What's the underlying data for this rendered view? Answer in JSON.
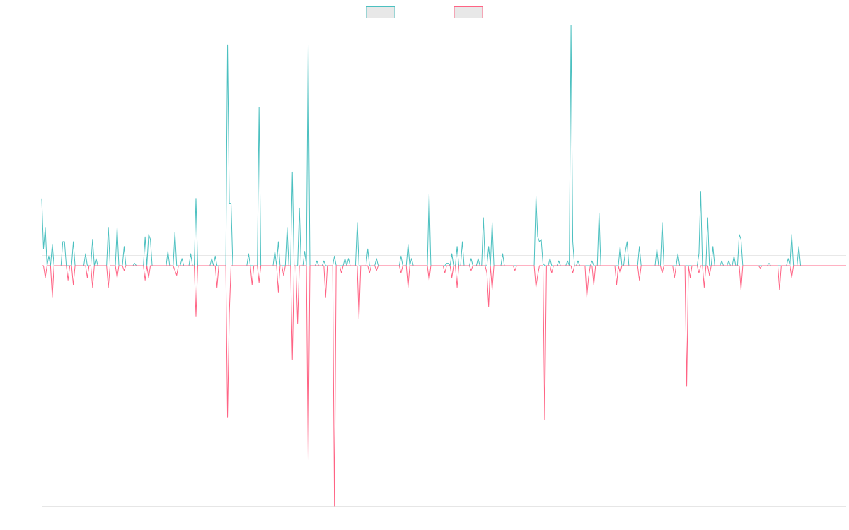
{
  "chart_data": {
    "type": "line",
    "title": "",
    "xlabel": "",
    "ylabel": "",
    "ylim": [
      -1,
      1
    ],
    "grid": false,
    "legend_position": "top-center",
    "x_count": 460,
    "series": [
      {
        "color": "#4bc0c0",
        "legend_fill": "#e8e8e8",
        "spikes": [
          [
            0,
            0.28
          ],
          [
            1,
            0.07
          ],
          [
            2,
            0.16
          ],
          [
            4,
            0.04
          ],
          [
            6,
            0.09
          ],
          [
            12,
            0.1
          ],
          [
            13,
            0.1
          ],
          [
            18,
            0.1
          ],
          [
            25,
            0.05
          ],
          [
            29,
            0.11
          ],
          [
            31,
            0.03
          ],
          [
            38,
            0.16
          ],
          [
            43,
            0.16
          ],
          [
            47,
            0.08
          ],
          [
            53,
            0.01
          ],
          [
            59,
            0.12
          ],
          [
            61,
            0.13
          ],
          [
            62,
            0.11
          ],
          [
            72,
            0.06
          ],
          [
            76,
            0.14
          ],
          [
            80,
            0.03
          ],
          [
            85,
            0.05
          ],
          [
            88,
            0.28
          ],
          [
            97,
            0.03
          ],
          [
            99,
            0.04
          ],
          [
            106,
            0.92
          ],
          [
            107,
            0.26
          ],
          [
            108,
            0.26
          ],
          [
            118,
            0.05
          ],
          [
            124,
            0.66
          ],
          [
            133,
            0.06
          ],
          [
            135,
            0.1
          ],
          [
            140,
            0.16
          ],
          [
            143,
            0.39
          ],
          [
            147,
            0.24
          ],
          [
            150,
            0.06
          ],
          [
            152,
            0.92
          ],
          [
            157,
            0.02
          ],
          [
            161,
            0.02
          ],
          [
            167,
            0.04
          ],
          [
            173,
            0.03
          ],
          [
            175,
            0.03
          ],
          [
            180,
            0.18
          ],
          [
            186,
            0.07
          ],
          [
            191,
            0.03
          ],
          [
            205,
            0.04
          ],
          [
            209,
            0.09
          ],
          [
            211,
            0.03
          ],
          [
            221,
            0.3
          ],
          [
            231,
            0.01
          ],
          [
            232,
            0.01
          ],
          [
            234,
            0.05
          ],
          [
            237,
            0.08
          ],
          [
            240,
            0.1
          ],
          [
            245,
            0.03
          ],
          [
            249,
            0.03
          ],
          [
            252,
            0.2
          ],
          [
            255,
            0.08
          ],
          [
            257,
            0.18
          ],
          [
            263,
            0.05
          ],
          [
            282,
            0.29
          ],
          [
            283,
            0.12
          ],
          [
            284,
            0.1
          ],
          [
            285,
            0.11
          ],
          [
            286,
            0.01
          ],
          [
            290,
            0.03
          ],
          [
            295,
            0.02
          ],
          [
            300,
            0.02
          ],
          [
            302,
            1.0
          ],
          [
            303,
            0.1
          ],
          [
            306,
            0.02
          ],
          [
            314,
            0.02
          ],
          [
            318,
            0.22
          ],
          [
            330,
            0.08
          ],
          [
            333,
            0.06
          ],
          [
            334,
            0.1
          ],
          [
            341,
            0.08
          ],
          [
            351,
            0.07
          ],
          [
            354,
            0.18
          ],
          [
            363,
            0.05
          ],
          [
            375,
            0.05
          ],
          [
            376,
            0.31
          ],
          [
            380,
            0.2
          ],
          [
            383,
            0.08
          ],
          [
            388,
            0.02
          ],
          [
            392,
            0.02
          ],
          [
            395,
            0.04
          ],
          [
            398,
            0.13
          ],
          [
            399,
            0.11
          ],
          [
            415,
            0.01
          ],
          [
            426,
            0.03
          ],
          [
            428,
            0.13
          ],
          [
            432,
            0.08
          ]
        ]
      },
      {
        "color": "#ff6384",
        "legend_fill": "#e8e8e8",
        "spikes": [
          [
            2,
            -0.05
          ],
          [
            6,
            -0.13
          ],
          [
            15,
            -0.06
          ],
          [
            18,
            -0.08
          ],
          [
            26,
            -0.05
          ],
          [
            29,
            -0.09
          ],
          [
            38,
            -0.09
          ],
          [
            43,
            -0.05
          ],
          [
            47,
            -0.02
          ],
          [
            59,
            -0.06
          ],
          [
            61,
            -0.05
          ],
          [
            76,
            -0.02
          ],
          [
            77,
            -0.04
          ],
          [
            88,
            -0.21
          ],
          [
            100,
            -0.09
          ],
          [
            106,
            -0.63
          ],
          [
            107,
            -0.2
          ],
          [
            120,
            -0.08
          ],
          [
            124,
            -0.07
          ],
          [
            135,
            -0.11
          ],
          [
            138,
            -0.04
          ],
          [
            143,
            -0.39
          ],
          [
            146,
            -0.24
          ],
          [
            152,
            -0.81
          ],
          [
            162,
            -0.13
          ],
          [
            167,
            -1.0
          ],
          [
            171,
            -0.03
          ],
          [
            181,
            -0.22
          ],
          [
            187,
            -0.03
          ],
          [
            191,
            -0.02
          ],
          [
            205,
            -0.03
          ],
          [
            209,
            -0.09
          ],
          [
            221,
            -0.06
          ],
          [
            230,
            -0.03
          ],
          [
            234,
            -0.05
          ],
          [
            237,
            -0.09
          ],
          [
            245,
            -0.02
          ],
          [
            254,
            -0.03
          ],
          [
            255,
            -0.17
          ],
          [
            257,
            -0.1
          ],
          [
            270,
            -0.02
          ],
          [
            282,
            -0.09
          ],
          [
            283,
            -0.04
          ],
          [
            287,
            -0.64
          ],
          [
            291,
            -0.03
          ],
          [
            303,
            -0.03
          ],
          [
            311,
            -0.13
          ],
          [
            312,
            -0.05
          ],
          [
            315,
            -0.08
          ],
          [
            328,
            -0.08
          ],
          [
            330,
            -0.03
          ],
          [
            341,
            -0.06
          ],
          [
            354,
            -0.03
          ],
          [
            361,
            -0.05
          ],
          [
            368,
            -0.5
          ],
          [
            370,
            -0.05
          ],
          [
            375,
            -0.03
          ],
          [
            378,
            -0.09
          ],
          [
            381,
            -0.04
          ],
          [
            399,
            -0.1
          ],
          [
            410,
            -0.01
          ],
          [
            421,
            -0.1
          ],
          [
            428,
            -0.05
          ]
        ]
      }
    ]
  }
}
